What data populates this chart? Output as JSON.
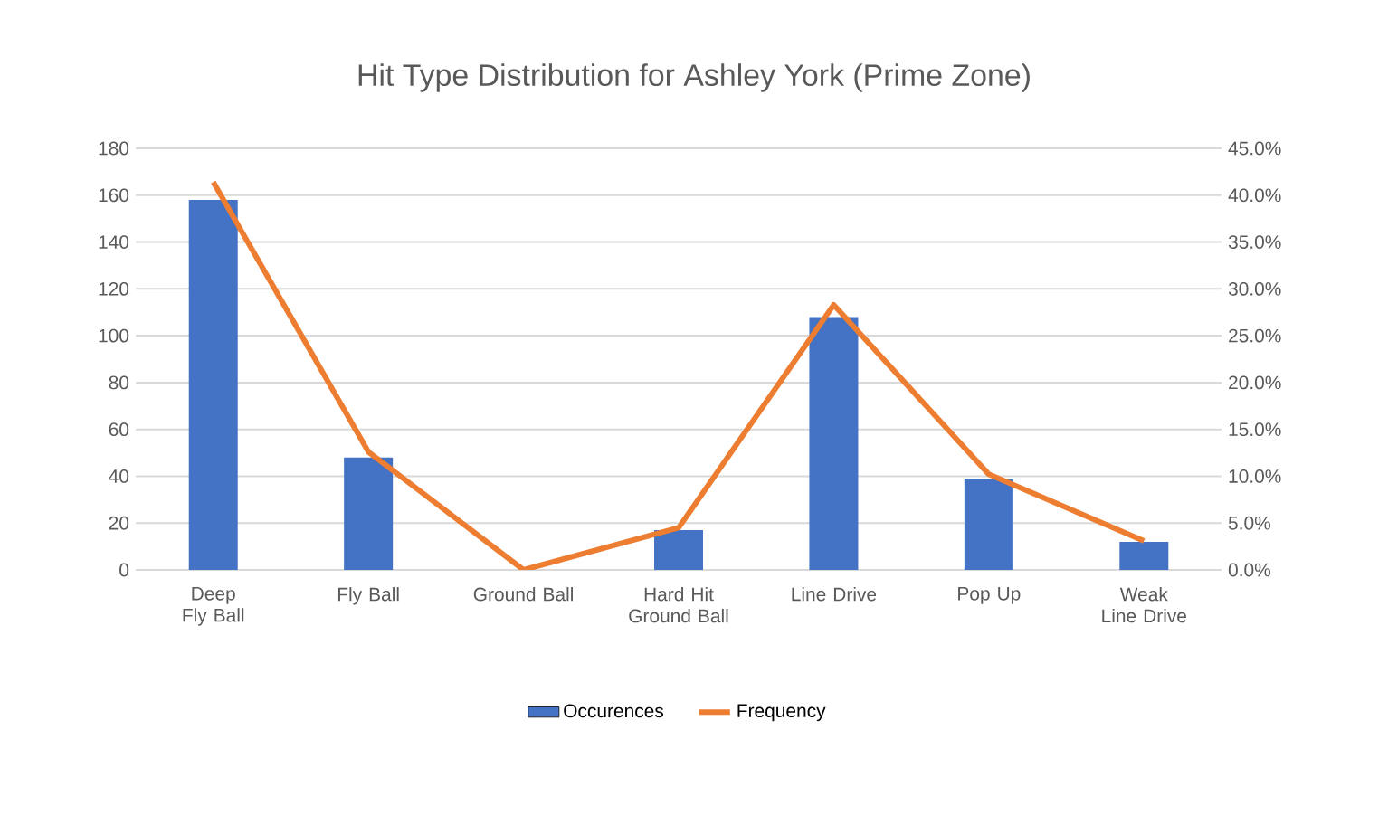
{
  "chart_data": {
    "type": "bar",
    "title": "Hit Type Distribution for Ashley York (Prime Zone)",
    "categories": [
      "Deep Fly Ball",
      "Fly Ball",
      "Ground Ball",
      "Hard Hit Ground Ball",
      "Line Drive",
      "Pop Up",
      "Weak Line Drive"
    ],
    "series": [
      {
        "name": "Occurences",
        "color": "#4472c4",
        "values": [
          158,
          48,
          0,
          17,
          108,
          39,
          12
        ]
      },
      {
        "name": "Frequency",
        "type": "line",
        "axis": "y2",
        "color": "#ed7d31",
        "values": [
          41.4,
          12.6,
          0,
          4.5,
          28.3,
          10.2,
          3.1
        ]
      }
    ],
    "ylim": [
      0,
      180
    ],
    "yticks": [
      0,
      20,
      40,
      60,
      80,
      100,
      120,
      140,
      160,
      180
    ],
    "y2lim": [
      0,
      45
    ],
    "y2ticks": [
      {
        "value": 0,
        "label": "0.0%"
      },
      {
        "value": 5,
        "label": "5.0%"
      },
      {
        "value": 10,
        "label": "10.0%"
      },
      {
        "value": 15,
        "label": "15.0%"
      },
      {
        "value": 20,
        "label": "20.0%"
      },
      {
        "value": 25,
        "label": "25.0%"
      },
      {
        "value": 30,
        "label": "30.0%"
      },
      {
        "value": 35,
        "label": "35.0%"
      },
      {
        "value": 40,
        "label": "40.0%"
      },
      {
        "value": 45,
        "label": "45.0%"
      }
    ],
    "grid": "y",
    "legend": "bottom"
  }
}
